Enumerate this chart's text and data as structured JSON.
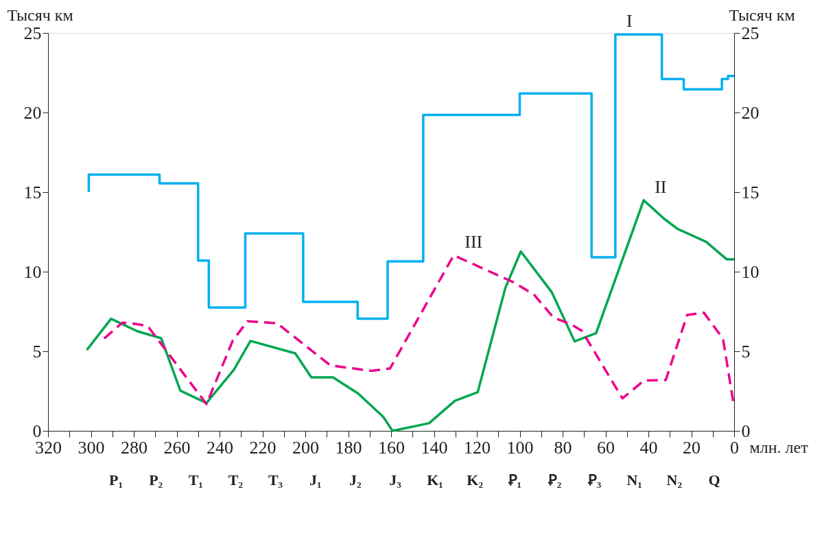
{
  "chart_data": {
    "type": "line",
    "xlabel": "млн. лет",
    "ylabel": "Тысяч км",
    "y2label": "Тысяч км",
    "xlim": [
      320,
      0
    ],
    "xticks": [
      320,
      {
        "value": 310,
        "label": null
      },
      300,
      {
        "value": 290,
        "label": null
      },
      280,
      {
        "value": 270,
        "label": null
      },
      260,
      {
        "value": 250,
        "label": null
      },
      240,
      {
        "value": 230,
        "label": null
      },
      220,
      {
        "value": 210,
        "label": null
      },
      200,
      {
        "value": 190,
        "label": null
      },
      180,
      {
        "value": 170,
        "label": null
      },
      160,
      {
        "value": 150,
        "label": null
      },
      140,
      {
        "value": 130,
        "label": null
      },
      120,
      {
        "value": 110,
        "label": null
      },
      100,
      {
        "value": 90,
        "label": null
      },
      80,
      {
        "value": 70,
        "label": null
      },
      60,
      {
        "value": 50,
        "label": null
      },
      40,
      {
        "value": 30,
        "label": null
      },
      20,
      {
        "value": 10,
        "label": null
      },
      0
    ],
    "ylim": [
      0,
      25
    ],
    "yticks": [
      0,
      5,
      10,
      15,
      20,
      25
    ],
    "y2lim": [
      0,
      25
    ],
    "y2ticks": [
      0,
      5,
      10,
      15,
      20,
      25
    ],
    "grid": false,
    "series": [
      {
        "type": "step",
        "name": "I",
        "color": "#00b0f0",
        "line_style": "solid",
        "x": [
          301,
          301,
          268,
          250,
          245,
          228,
          201,
          175.6,
          161.6,
          145,
          100,
          66.5,
          55.4,
          33.7,
          23.5,
          5.7,
          2.9,
          0
        ],
        "values": [
          15.0,
          16.1,
          15.55,
          10.7,
          7.75,
          12.4,
          8.1,
          7.05,
          10.65,
          19.85,
          21.2,
          10.9,
          24.9,
          22.1,
          21.45,
          22.1,
          22.3,
          22.3
        ]
      },
      {
        "type": "line",
        "name": "II",
        "color": "#00a651",
        "line_style": "solid",
        "x": [
          301.9,
          290.6,
          278.4,
          267.2,
          258.3,
          246.1,
          233.3,
          225.6,
          204.7,
          197.2,
          187.1,
          175.4,
          163.7,
          159.3,
          142.3,
          130.2,
          119.6,
          106.7,
          99.5,
          85.0,
          74.4,
          64.4,
          42.2,
          32.7,
          26.4,
          13.0,
          3.5,
          0
        ],
        "values": [
          5.08,
          7.04,
          6.26,
          5.82,
          2.53,
          1.75,
          3.84,
          5.65,
          4.87,
          3.36,
          3.36,
          2.35,
          0.88,
          0,
          0.48,
          1.89,
          2.43,
          8.98,
          11.27,
          8.7,
          5.62,
          6.14,
          14.49,
          13.33,
          12.69,
          11.87,
          10.78,
          10.78
        ]
      },
      {
        "type": "line",
        "name": "III",
        "color": "#ec008c",
        "line_style": "dashed",
        "x": [
          293.8,
          285.3,
          278.4,
          273.6,
          246.1,
          233.9,
          227.0,
          213.2,
          188.3,
          169.2,
          160.5,
          130.8,
          102.8,
          93.3,
          84.4,
          75.5,
          71.0,
          52.1,
          42.0,
          31.9,
          21.9,
          14.1,
          5.2,
          0
        ],
        "values": [
          5.8,
          6.8,
          6.7,
          6.6,
          1.68,
          5.65,
          6.89,
          6.76,
          4.11,
          3.77,
          3.92,
          11.03,
          9.33,
          8.55,
          7.14,
          6.64,
          6.28,
          2.04,
          3.17,
          3.19,
          7.28,
          7.42,
          5.79,
          1.47
        ]
      }
    ],
    "annotations": [
      "P₁",
      "P₂",
      "T₁",
      "T₂",
      "T₃",
      "J₁",
      "J₂",
      "J₃",
      "K₁",
      "K₂",
      "Ꝑ₁",
      "Ꝑ₂",
      "Ꝑ₃",
      "N₁",
      "N₂",
      "Q"
    ]
  }
}
